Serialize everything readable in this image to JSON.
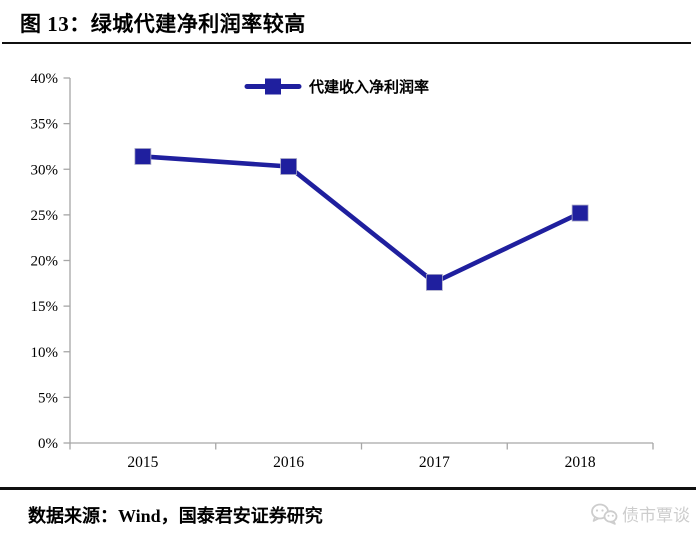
{
  "figure": {
    "title": "图 13：绿城代建净利润率较高",
    "source": "数据来源：Wind，国泰君安证券研究",
    "watermark": "债市覃谈"
  },
  "chart_data": {
    "type": "line",
    "title": "",
    "categories": [
      "2015",
      "2016",
      "2017",
      "2018"
    ],
    "series": [
      {
        "name": "代建收入净利润率",
        "values": [
          31.4,
          30.3,
          17.6,
          25.2
        ],
        "color": "#1f1f9e",
        "marker": "square"
      }
    ],
    "xlabel": "",
    "ylabel": "",
    "ylim": [
      0,
      40
    ],
    "ytick_values": [
      0,
      5,
      10,
      15,
      20,
      25,
      30,
      35,
      40
    ],
    "ytick_labels": [
      "0%",
      "5%",
      "10%",
      "15%",
      "20%",
      "25%",
      "30%",
      "35%",
      "40%"
    ],
    "grid": false,
    "legend_position": "top-center",
    "axis_color": "#a6a6a6",
    "text_color": "#000000"
  }
}
